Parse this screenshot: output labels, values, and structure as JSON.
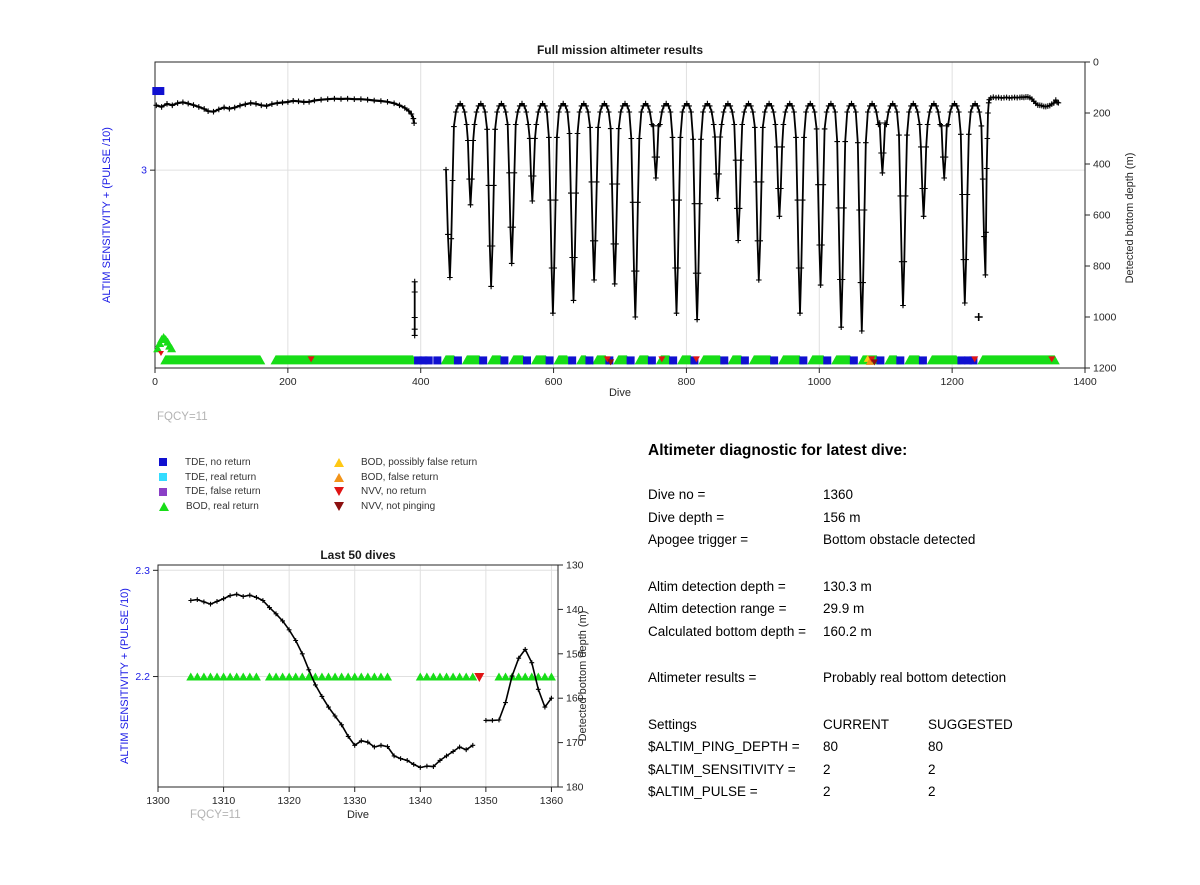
{
  "colors": {
    "axis": "#262626",
    "grid": "#e0e0e0",
    "line": "#000000",
    "blue_axis_text": "#1a1ae6",
    "gray_annotation": "#b3b3b3",
    "tde_no_return": "#1010d0",
    "tde_real_return": "#33dcff",
    "tde_false_return": "#8a3fc6",
    "bod_real_return": "#17dd17",
    "bod_possibly_false_return": "#ffc814",
    "bod_false_return": "#f29318",
    "nvv_no_return": "#e01414",
    "nvv_not_pinging": "#8c1010"
  },
  "legend": {
    "items": [
      {
        "shape": "square",
        "color_key": "tde_no_return",
        "label": "TDE, no return"
      },
      {
        "shape": "square",
        "color_key": "tde_real_return",
        "label": "TDE, real return"
      },
      {
        "shape": "square",
        "color_key": "tde_false_return",
        "label": "TDE, false return"
      },
      {
        "shape": "tri-up",
        "color_key": "bod_real_return",
        "label": "BOD, real return"
      },
      {
        "shape": "tri-up",
        "color_key": "bod_possibly_false_return",
        "label": "BOD, possibly false return"
      },
      {
        "shape": "tri-up",
        "color_key": "bod_false_return",
        "label": "BOD, false return"
      },
      {
        "shape": "tri-down",
        "color_key": "nvv_no_return",
        "label": "NVV, no return"
      },
      {
        "shape": "tri-down",
        "color_key": "nvv_not_pinging",
        "label": "NVV, not pinging"
      }
    ]
  },
  "diagnostic": {
    "title": "Altimeter diagnostic for latest dive:",
    "group1": [
      {
        "label": "Dive no =",
        "value": "1360"
      },
      {
        "label": "Dive depth =",
        "value": "156 m"
      },
      {
        "label": "Apogee trigger =",
        "value": "Bottom obstacle detected"
      }
    ],
    "group2": [
      {
        "label": "Altim detection depth =",
        "value": "130.3 m"
      },
      {
        "label": "Altim detection range =",
        "value": "29.9 m"
      },
      {
        "label": "Calculated bottom depth =",
        "value": "160.2 m"
      }
    ],
    "group3": [
      {
        "label": "Altimeter results =",
        "value": "Probably real bottom detection"
      }
    ],
    "settings": {
      "col1": "Settings",
      "col2": "CURRENT",
      "col3": "SUGGESTED",
      "rows": [
        {
          "name": "$ALTIM_PING_DEPTH =",
          "current": "80",
          "suggested": "80"
        },
        {
          "name": "$ALTIM_SENSITIVITY =",
          "current": "2",
          "suggested": "2"
        },
        {
          "name": "$ALTIM_PULSE =",
          "current": "2",
          "suggested": "2"
        }
      ]
    }
  },
  "chart_data": [
    {
      "type": "line",
      "title": "Full mission altimeter results",
      "xlabel": "Dive",
      "ylabel_left": "ALTIM SENSITIVITY + (PULSE /10)",
      "ylabel_right": "Detected bottom depth (m)",
      "annotation": "FQCY=11",
      "xlim": [
        0,
        1400
      ],
      "left_ylim": [
        0,
        4.64
      ],
      "right_ylim": [
        0,
        1200
      ],
      "right_axis_reversed": true,
      "grid": true,
      "x_ticks": [
        0,
        200,
        400,
        600,
        800,
        1000,
        1200,
        1400
      ],
      "left_ticks": [
        3
      ],
      "right_ticks": [
        0,
        200,
        400,
        600,
        800,
        1000,
        1200
      ],
      "start_segment": [
        [
          2,
          170
        ],
        [
          10,
          176
        ],
        [
          18,
          164
        ],
        [
          26,
          170
        ],
        [
          34,
          161
        ],
        [
          42,
          158
        ],
        [
          50,
          163
        ],
        [
          58,
          169
        ],
        [
          66,
          176
        ],
        [
          74,
          184
        ],
        [
          80,
          193
        ],
        [
          88,
          195
        ],
        [
          96,
          186
        ],
        [
          104,
          178
        ],
        [
          112,
          183
        ],
        [
          120,
          179
        ],
        [
          128,
          171
        ],
        [
          136,
          166
        ],
        [
          144,
          161
        ],
        [
          152,
          164
        ],
        [
          160,
          170
        ],
        [
          168,
          172
        ],
        [
          176,
          165
        ],
        [
          184,
          161
        ],
        [
          192,
          159
        ],
        [
          200,
          157
        ],
        [
          208,
          152
        ],
        [
          216,
          154
        ],
        [
          224,
          157
        ],
        [
          232,
          156
        ],
        [
          240,
          151
        ],
        [
          250,
          148
        ],
        [
          260,
          146
        ],
        [
          270,
          144
        ],
        [
          280,
          145
        ],
        [
          290,
          144
        ],
        [
          300,
          146
        ],
        [
          310,
          146
        ],
        [
          320,
          148
        ],
        [
          330,
          151
        ],
        [
          340,
          153
        ],
        [
          350,
          156
        ],
        [
          360,
          162
        ],
        [
          368,
          170
        ],
        [
          376,
          180
        ],
        [
          382,
          192
        ],
        [
          386,
          204
        ],
        [
          389,
          222
        ],
        [
          390,
          240
        ]
      ],
      "pre_dip_segment": [
        [
          391,
          862
        ],
        [
          391,
          902
        ],
        [
          391,
          1002
        ],
        [
          391,
          1048
        ],
        [
          391,
          1072
        ]
      ],
      "dip_bottoms": [
        [
          444,
          845
        ],
        [
          475,
          560
        ],
        [
          506,
          880
        ],
        [
          537,
          790
        ],
        [
          568,
          545
        ],
        [
          599,
          985
        ],
        [
          630,
          935
        ],
        [
          661,
          855
        ],
        [
          692,
          870
        ],
        [
          723,
          1000
        ],
        [
          754,
          455
        ],
        [
          785,
          985
        ],
        [
          816,
          1010
        ],
        [
          847,
          535
        ],
        [
          878,
          700
        ],
        [
          909,
          855
        ],
        [
          940,
          605
        ],
        [
          971,
          985
        ],
        [
          1002,
          875
        ],
        [
          1033,
          1040
        ],
        [
          1064,
          1055
        ],
        [
          1095,
          435
        ],
        [
          1126,
          955
        ],
        [
          1157,
          605
        ],
        [
          1188,
          455
        ],
        [
          1219,
          945
        ],
        [
          1250,
          835
        ]
      ],
      "tail_segment": [
        [
          1254,
          200
        ],
        [
          1255,
          160
        ],
        [
          1256,
          148
        ],
        [
          1258,
          141
        ],
        [
          1262,
          138
        ],
        [
          1266,
          140
        ],
        [
          1270,
          139
        ],
        [
          1274,
          141
        ],
        [
          1278,
          140
        ],
        [
          1282,
          139
        ],
        [
          1286,
          141
        ],
        [
          1290,
          140
        ],
        [
          1294,
          139
        ],
        [
          1298,
          140
        ],
        [
          1302,
          139
        ],
        [
          1305,
          138
        ],
        [
          1308,
          139
        ],
        [
          1311,
          137
        ],
        [
          1314,
          137
        ],
        [
          1317,
          140
        ],
        [
          1320,
          145
        ],
        [
          1323,
          154
        ],
        [
          1326,
          162
        ],
        [
          1329,
          169
        ],
        [
          1332,
          170
        ],
        [
          1335,
          171
        ],
        [
          1338,
          174
        ],
        [
          1341,
          175
        ],
        [
          1344,
          173
        ],
        [
          1347,
          171
        ],
        [
          1350,
          165
        ],
        [
          1353,
          161
        ],
        [
          1356,
          149
        ],
        [
          1358,
          158
        ],
        [
          1360,
          160
        ]
      ],
      "isolated_points": [
        [
          1240,
          1000
        ]
      ],
      "sensitivity_square": {
        "dive": 5,
        "value": 4.2
      },
      "start_cluster": {
        "triangles": [
          [
            4,
            0.3
          ],
          [
            7,
            0.38
          ],
          [
            10,
            0.44
          ],
          [
            13,
            0.47
          ],
          [
            16,
            0.44
          ],
          [
            19,
            0.4
          ],
          [
            22,
            0.34
          ],
          [
            25,
            0.3
          ]
        ],
        "red_triangle": [
          9,
          0.22
        ]
      },
      "band": {
        "value": 0.115,
        "green_ranges": [
          [
            8,
            160
          ],
          [
            174,
            390
          ],
          [
            430,
            452
          ],
          [
            462,
            490
          ],
          [
            500,
            522
          ],
          [
            532,
            556
          ],
          [
            566,
            590
          ],
          [
            600,
            622
          ],
          [
            634,
            650
          ],
          [
            658,
            680
          ],
          [
            690,
            712
          ],
          [
            722,
            744
          ],
          [
            754,
            776
          ],
          [
            786,
            808
          ],
          [
            818,
            852
          ],
          [
            862,
            884
          ],
          [
            894,
            928
          ],
          [
            938,
            972
          ],
          [
            982,
            1008
          ],
          [
            1018,
            1048
          ],
          [
            1058,
            1088
          ],
          [
            1098,
            1118
          ],
          [
            1128,
            1152
          ],
          [
            1162,
            1208
          ],
          [
            1238,
            1356
          ]
        ],
        "blue_squares": [
          396,
          404,
          412,
          425,
          456,
          494,
          526,
          560,
          594,
          628,
          654,
          684,
          716,
          748,
          780,
          812,
          857,
          888,
          932,
          976,
          1012,
          1052,
          1092,
          1122,
          1156,
          1214,
          1224,
          1232
        ],
        "red_triangles": [
          235,
          681,
          763,
          815,
          1079,
          1234,
          1350
        ],
        "dark_red_triangles": [
          686,
          1083
        ],
        "yellow_triangles": [
          1073
        ],
        "orange_triangles": [
          1076
        ]
      }
    },
    {
      "type": "line",
      "title": "Last 50 dives",
      "xlabel": "Dive",
      "ylabel_left": "ALTIM SENSITIVITY + (PULSE /10)",
      "ylabel_right": "Detected bottom depth (m)",
      "annotation": "FQCY=11",
      "xlim": [
        1300,
        1361
      ],
      "left_ylim": [
        2.096,
        2.305
      ],
      "right_ylim": [
        130,
        180
      ],
      "right_axis_reversed": true,
      "grid": true,
      "x_ticks": [
        1300,
        1310,
        1320,
        1330,
        1340,
        1350,
        1360
      ],
      "left_ticks": [
        2.3,
        2.2
      ],
      "right_ticks": [
        130,
        140,
        150,
        160,
        170,
        180
      ],
      "depth_segments": [
        [
          [
            1305,
            138
          ],
          [
            1306,
            137.8
          ],
          [
            1307,
            138.3
          ],
          [
            1308,
            138.8
          ],
          [
            1309,
            138.2
          ],
          [
            1310,
            137.6
          ],
          [
            1311,
            136.9
          ],
          [
            1312,
            136.6
          ],
          [
            1313,
            137.1
          ],
          [
            1314,
            136.8
          ],
          [
            1315,
            137.3
          ],
          [
            1316,
            138
          ],
          [
            1317,
            139.6
          ],
          [
            1318,
            141
          ],
          [
            1319,
            142.6
          ],
          [
            1320,
            144.6
          ],
          [
            1321,
            147
          ],
          [
            1322,
            150
          ],
          [
            1323,
            153.6
          ],
          [
            1324,
            157
          ],
          [
            1325,
            159.6
          ],
          [
            1326,
            162
          ],
          [
            1327,
            164
          ],
          [
            1328,
            166
          ],
          [
            1329,
            168.6
          ],
          [
            1330,
            170.6
          ],
          [
            1331,
            169.6
          ],
          [
            1332,
            169.9
          ],
          [
            1333,
            171
          ],
          [
            1334,
            170.6
          ],
          [
            1335,
            170.9
          ],
          [
            1336,
            173
          ],
          [
            1337,
            173.6
          ],
          [
            1338,
            174
          ],
          [
            1339,
            174.9
          ],
          [
            1340,
            175.6
          ],
          [
            1341,
            175.3
          ],
          [
            1342,
            175.4
          ],
          [
            1343,
            174
          ],
          [
            1344,
            173
          ],
          [
            1345,
            172
          ],
          [
            1346,
            171
          ],
          [
            1347,
            171.6
          ],
          [
            1348,
            170.6
          ]
        ],
        [
          [
            1350,
            165
          ],
          [
            1351,
            165
          ],
          [
            1352,
            164.9
          ],
          [
            1353,
            161
          ],
          [
            1354,
            155
          ],
          [
            1355,
            151
          ],
          [
            1356,
            149
          ],
          [
            1357,
            152
          ],
          [
            1358,
            158
          ],
          [
            1359,
            162
          ],
          [
            1360,
            160
          ]
        ]
      ],
      "sensitivity_value": 2.2,
      "green_triangle_ranges": [
        [
          1305,
          1315
        ],
        [
          1317,
          1335
        ],
        [
          1340,
          1348
        ],
        [
          1352,
          1360
        ]
      ],
      "red_triangle_dives": [
        1349
      ]
    }
  ]
}
